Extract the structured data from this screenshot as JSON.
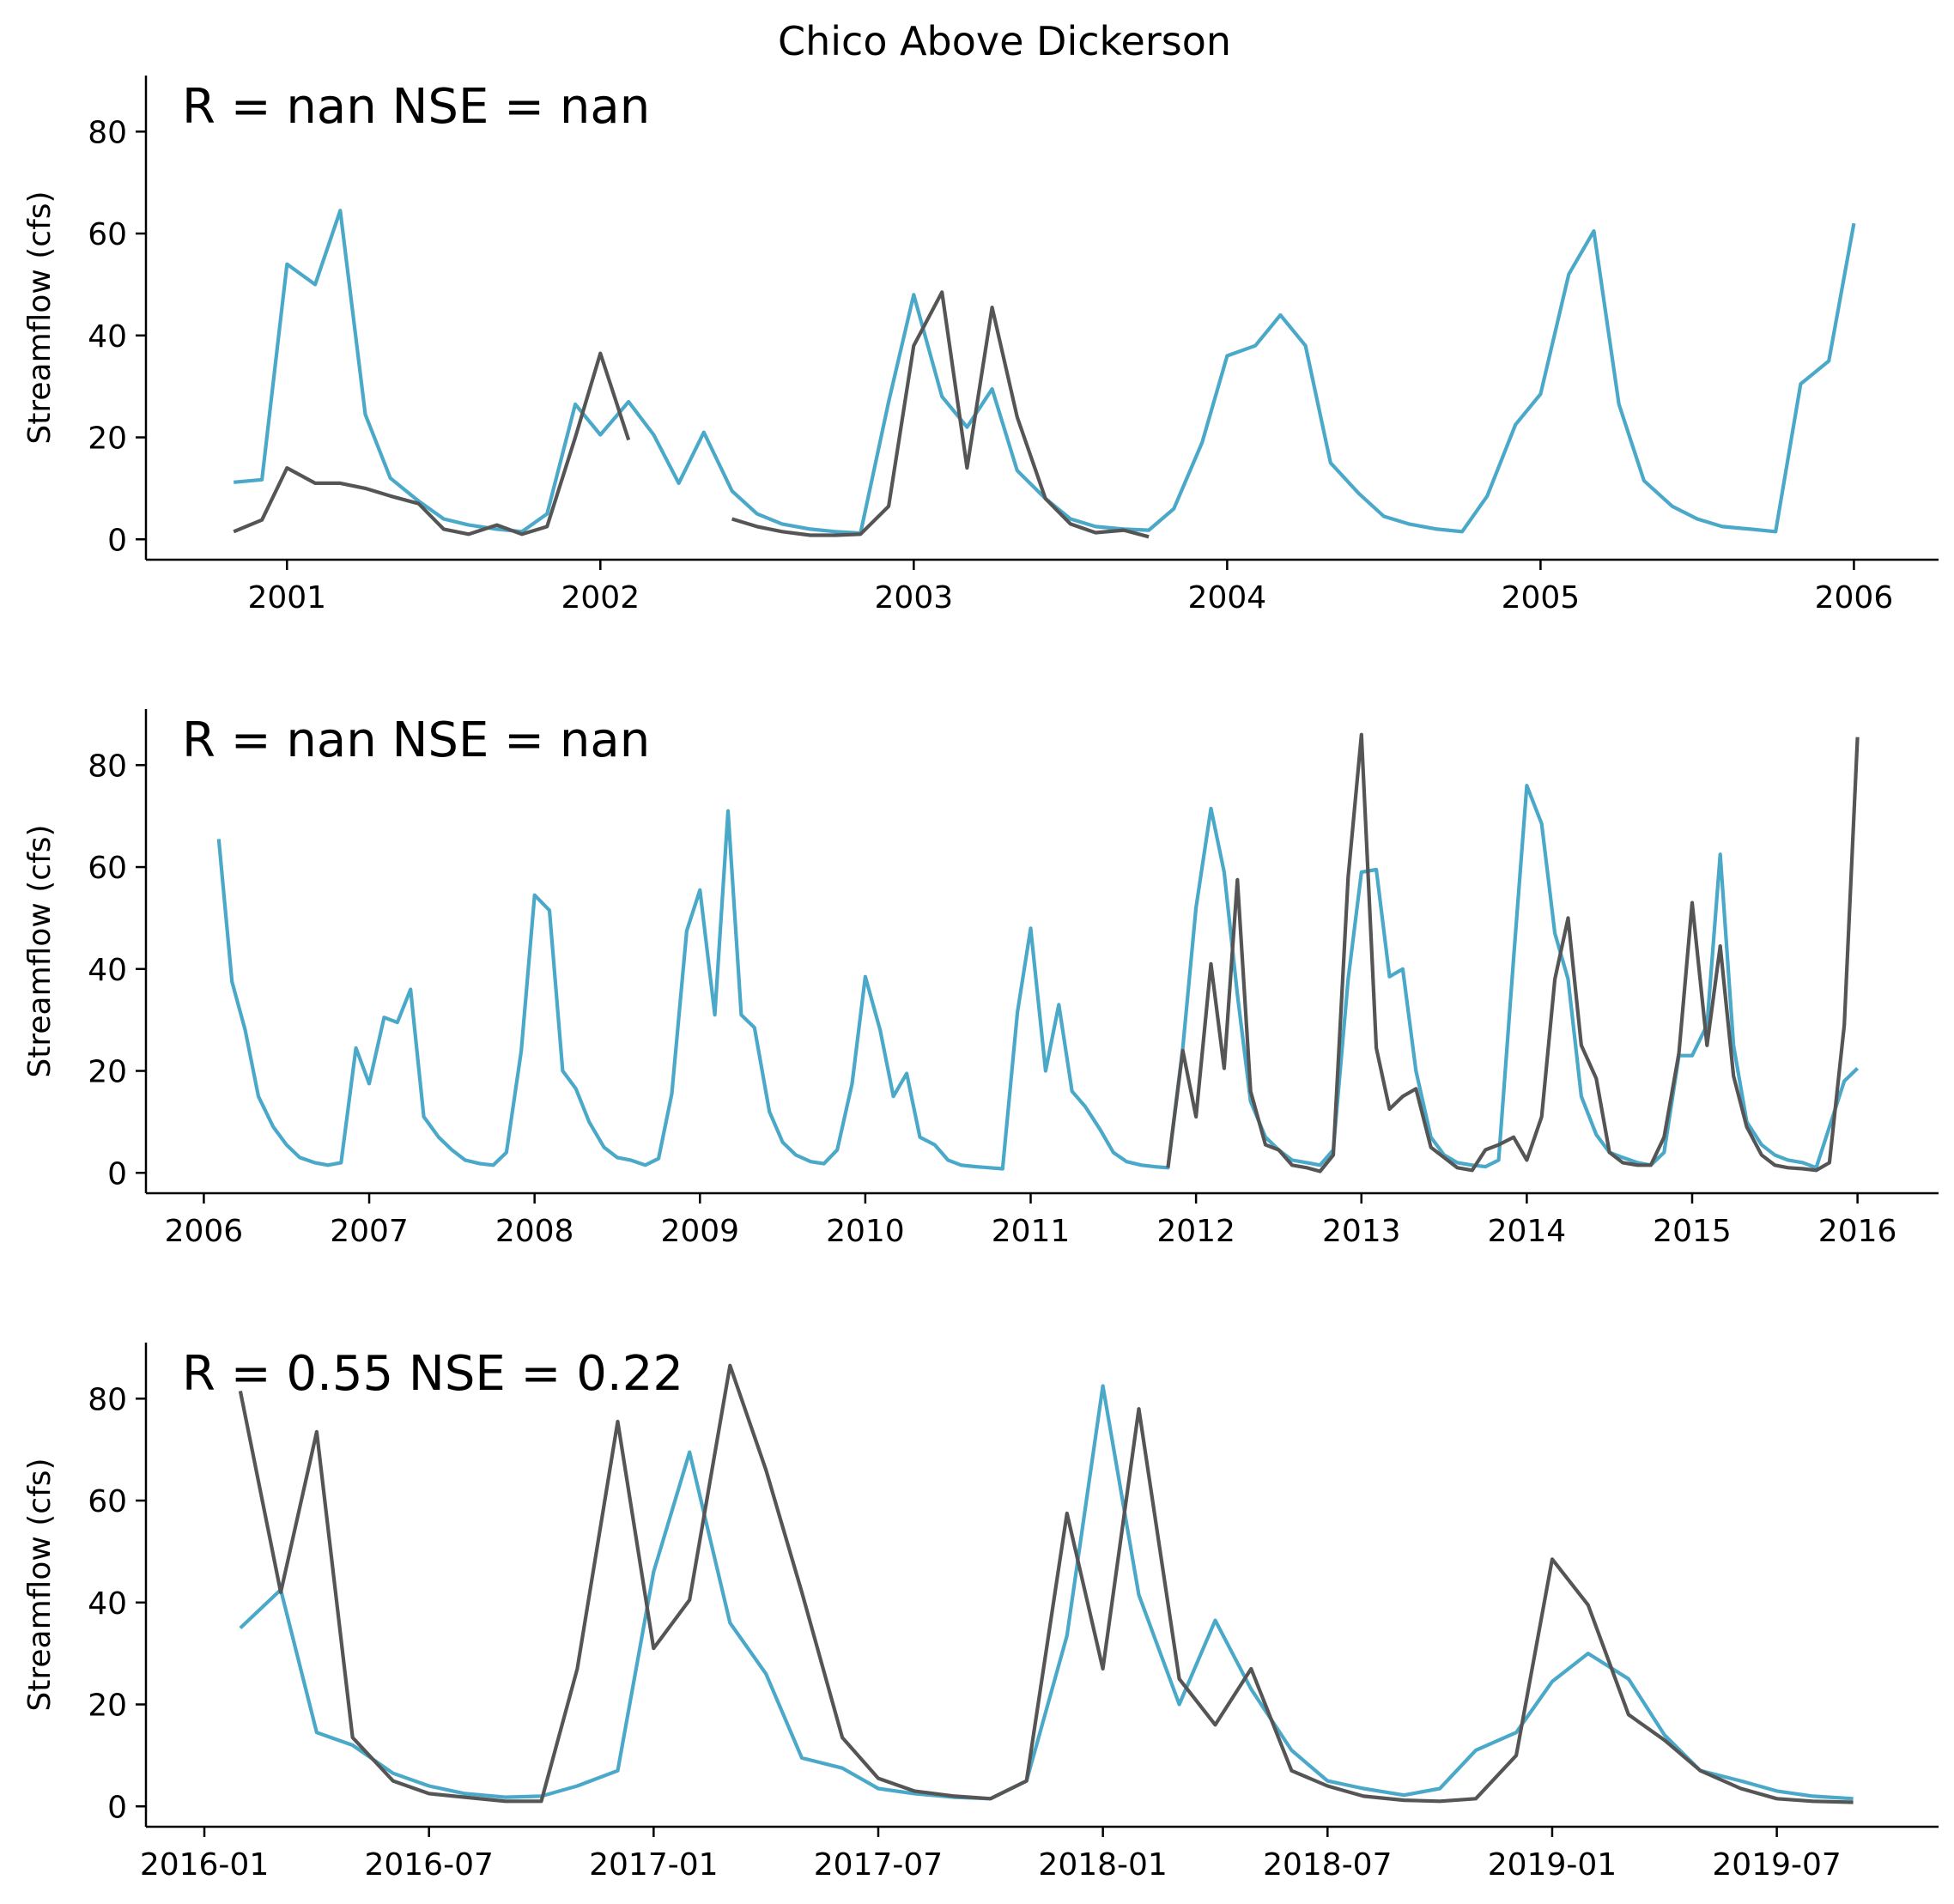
{
  "figure": {
    "title": "Chico Above Dickerson"
  },
  "colors": {
    "observed": "#555555",
    "simulated": "#4aa8c8"
  },
  "chart_data": [
    {
      "type": "line",
      "title": "",
      "annotation": "R = nan  NSE = nan",
      "ylabel": "Streamflow (cfs)",
      "xlabel": "",
      "xlim": [
        2000.55,
        2006.27
      ],
      "ylim": [
        -4,
        91
      ],
      "yticks": [
        0,
        20,
        40,
        60,
        80
      ],
      "xticks": [
        {
          "v": 2001,
          "label": "2001"
        },
        {
          "v": 2002,
          "label": "2002"
        },
        {
          "v": 2003,
          "label": "2003"
        },
        {
          "v": 2004,
          "label": "2004"
        },
        {
          "v": 2005,
          "label": "2005"
        },
        {
          "v": 2006,
          "label": "2006"
        }
      ],
      "series": [
        {
          "key": "simulated",
          "x": [
            2000.83,
            2000.92,
            2001.0,
            2001.09,
            2001.17,
            2001.25,
            2001.33,
            2001.42,
            2001.5,
            2001.58,
            2001.67,
            2001.75,
            2001.83,
            2001.92,
            2002.0,
            2002.09,
            2002.17,
            2002.25,
            2002.33,
            2002.42,
            2002.5,
            2002.58,
            2002.67,
            2002.75,
            2002.83,
            2002.92,
            2003.0,
            2003.09,
            2003.17,
            2003.25,
            2003.33,
            2003.42,
            2003.5,
            2003.58,
            2003.67,
            2003.75,
            2003.83,
            2003.92,
            2004.0,
            2004.09,
            2004.17,
            2004.25,
            2004.33,
            2004.42,
            2004.5,
            2004.58,
            2004.67,
            2004.75,
            2004.83,
            2004.92,
            2005.0,
            2005.09,
            2005.17,
            2005.25,
            2005.33,
            2005.42,
            2005.5,
            2005.58,
            2005.67,
            2005.75,
            2005.83,
            2005.92,
            2006.0
          ],
          "y": [
            11.2,
            11.7,
            54,
            50,
            64.5,
            24.5,
            12,
            7.5,
            4,
            2.8,
            2,
            1.5,
            5,
            26.5,
            20.5,
            27,
            20.5,
            11,
            21,
            9.5,
            5,
            3,
            2,
            1.5,
            1.2,
            27,
            48,
            28,
            22,
            29.5,
            13.5,
            8,
            4,
            2.5,
            2,
            1.8,
            6,
            19,
            36,
            38,
            44,
            38,
            15,
            9,
            4.5,
            3,
            2,
            1.5,
            8.5,
            22.5,
            28.5,
            52,
            60.5,
            26.5,
            11.5,
            6.5,
            4,
            2.5,
            2,
            1.5,
            30.5,
            35,
            62
          ]
        },
        {
          "key": "observed",
          "x": [
            2000.83,
            2000.92,
            2001.0,
            2001.09,
            2001.17,
            2001.25,
            2001.33,
            2001.42,
            2001.5,
            2001.58,
            2001.67,
            2001.75,
            2001.83,
            2001.92,
            2002.0,
            2002.09,
            null,
            2002.42,
            2002.5,
            2002.58,
            2002.67,
            2002.75,
            2002.83,
            2002.92,
            2003.0,
            2003.09,
            2003.17,
            2003.25,
            2003.33,
            2003.42,
            2003.5,
            2003.58,
            2003.67,
            2003.75
          ],
          "y": [
            1.5,
            3.8,
            14,
            11,
            11,
            10,
            8.5,
            7,
            2,
            1,
            2.8,
            1,
            2.5,
            20,
            36.5,
            19.5,
            null,
            4,
            2.5,
            1.5,
            0.8,
            0.8,
            1,
            6.5,
            38,
            48.5,
            14,
            45.5,
            24,
            8,
            3,
            1.3,
            1.8,
            0.5
          ]
        }
      ]
    },
    {
      "type": "line",
      "title": "",
      "annotation": "R = nan  NSE = nan",
      "ylabel": "Streamflow (cfs)",
      "xlabel": "",
      "xlim": [
        2005.65,
        2016.49
      ],
      "ylim": [
        -4,
        91
      ],
      "yticks": [
        0,
        20,
        40,
        60,
        80
      ],
      "xticks": [
        {
          "v": 2006,
          "label": "2006"
        },
        {
          "v": 2007,
          "label": "2007"
        },
        {
          "v": 2008,
          "label": "2008"
        },
        {
          "v": 2009,
          "label": "2009"
        },
        {
          "v": 2010,
          "label": "2010"
        },
        {
          "v": 2011,
          "label": "2011"
        },
        {
          "v": 2012,
          "label": "2012"
        },
        {
          "v": 2013,
          "label": "2013"
        },
        {
          "v": 2014,
          "label": "2014"
        },
        {
          "v": 2015,
          "label": "2015"
        },
        {
          "v": 2016,
          "label": "2016"
        }
      ],
      "series": [
        {
          "key": "simulated",
          "x": [
            2006.09,
            2006.17,
            2006.25,
            2006.33,
            2006.42,
            2006.5,
            2006.58,
            2006.67,
            2006.75,
            2006.83,
            2006.92,
            2007.0,
            2007.09,
            2007.17,
            2007.25,
            2007.33,
            2007.42,
            2007.5,
            2007.58,
            2007.67,
            2007.75,
            2007.83,
            2007.92,
            2008.0,
            2008.09,
            2008.17,
            2008.25,
            2008.33,
            2008.42,
            2008.5,
            2008.58,
            2008.67,
            2008.75,
            2008.83,
            2008.92,
            2009.0,
            2009.09,
            2009.17,
            2009.25,
            2009.33,
            2009.42,
            2009.5,
            2009.58,
            2009.67,
            2009.75,
            2009.83,
            2009.92,
            2010.0,
            2010.09,
            2010.17,
            2010.25,
            2010.33,
            2010.42,
            2010.5,
            2010.58,
            2010.67,
            2010.75,
            2010.83,
            2010.92,
            2011.0,
            2011.09,
            2011.17,
            2011.25,
            2011.33,
            2011.42,
            2011.5,
            2011.58,
            2011.67,
            2011.75,
            2011.83,
            2011.92,
            2012.0,
            2012.09,
            2012.17,
            2012.25,
            2012.33,
            2012.42,
            2012.5,
            2012.58,
            2012.67,
            2012.75,
            2012.83,
            2012.92,
            2013.0,
            2013.09,
            2013.17,
            2013.25,
            2013.33,
            2013.42,
            2013.5,
            2013.58,
            2013.67,
            2013.75,
            2013.83,
            2013.92,
            2014.0,
            2014.09,
            2014.17,
            2014.25,
            2014.33,
            2014.42,
            2014.5,
            2014.58,
            2014.67,
            2014.75,
            2014.83,
            2014.92,
            2015.0,
            2015.09,
            2015.17,
            2015.25,
            2015.33,
            2015.42,
            2015.5,
            2015.58,
            2015.67,
            2015.75,
            2015.83,
            2015.92,
            2016.0
          ],
          "y": [
            65.5,
            37.5,
            28,
            15,
            9,
            5.5,
            3,
            2,
            1.5,
            2,
            24.5,
            17.5,
            30.5,
            29.5,
            36,
            11,
            7,
            4.5,
            2.5,
            1.8,
            1.5,
            4,
            24,
            54.5,
            51.5,
            20,
            16.5,
            10,
            5,
            3,
            2.5,
            1.5,
            2.8,
            15.5,
            47.5,
            55.5,
            31,
            71,
            31,
            28.5,
            12,
            6,
            3.5,
            2.2,
            1.8,
            4.5,
            17.5,
            38.5,
            28,
            15,
            19.5,
            7,
            5.5,
            2.5,
            1.5,
            1.2,
            1,
            0.8,
            31.5,
            48,
            20,
            33,
            16,
            13,
            8.5,
            4,
            2.2,
            1.5,
            1.2,
            1,
            24.5,
            52,
            71.5,
            59,
            35,
            14,
            7,
            4.5,
            2.5,
            2,
            1.5,
            4.5,
            38,
            59,
            59.5,
            38.5,
            40,
            20,
            7,
            3.5,
            2,
            1.5,
            1.2,
            2.5,
            42,
            76,
            68.5,
            47,
            38,
            15,
            7.5,
            4,
            3,
            2,
            1.5,
            4,
            23,
            23,
            29,
            62.5,
            25,
            10,
            5.5,
            3.5,
            2.5,
            2,
            1,
            9,
            18,
            20.5
          ]
        },
        {
          "key": "observed",
          "x": [
            2011.83,
            2011.92,
            2012.0,
            2012.09,
            2012.17,
            2012.25,
            2012.33,
            2012.42,
            2012.5,
            2012.58,
            2012.67,
            2012.75,
            2012.83,
            2012.92,
            2013.0,
            2013.09,
            2013.17,
            2013.25,
            2013.33,
            2013.42,
            2013.5,
            2013.58,
            2013.67,
            2013.75,
            2013.83,
            2013.92,
            2014.0,
            2014.09,
            2014.17,
            2014.25,
            2014.33,
            2014.42,
            2014.5,
            2014.58,
            2014.67,
            2014.75,
            2014.83,
            2014.92,
            2015.0,
            2015.09,
            2015.17,
            2015.25,
            2015.33,
            2015.42,
            2015.5,
            2015.58,
            2015.67,
            2015.75,
            2015.83,
            2015.92,
            2016.0
          ],
          "y": [
            1,
            24,
            11,
            41,
            20.5,
            57.5,
            16,
            5.5,
            4.5,
            1.5,
            1,
            0.3,
            3.5,
            58,
            86,
            24.5,
            12.5,
            15,
            16.5,
            5,
            3,
            1,
            0.5,
            4.5,
            5.5,
            7,
            2.5,
            11,
            38,
            50,
            25,
            18.5,
            4,
            2,
            1.5,
            1.5,
            7,
            23.5,
            53,
            25,
            44.5,
            19,
            9,
            3.5,
            1.5,
            1,
            0.8,
            0.5,
            2,
            29,
            85.5
          ]
        }
      ]
    },
    {
      "type": "line",
      "title": "",
      "annotation": "R = 0.55  NSE = 0.22",
      "ylabel": "Streamflow (cfs)",
      "xlabel": "",
      "xlim": [
        2015.87,
        2019.86
      ],
      "ylim": [
        -4,
        91
      ],
      "yticks": [
        0,
        20,
        40,
        60,
        80
      ],
      "xticks": [
        {
          "v": 2016.0,
          "label": "2016-01"
        },
        {
          "v": 2016.5,
          "label": "2016-07"
        },
        {
          "v": 2017.0,
          "label": "2017-01"
        },
        {
          "v": 2017.5,
          "label": "2017-07"
        },
        {
          "v": 2018.0,
          "label": "2018-01"
        },
        {
          "v": 2018.5,
          "label": "2018-07"
        },
        {
          "v": 2019.0,
          "label": "2019-01"
        },
        {
          "v": 2019.5,
          "label": "2019-07"
        }
      ],
      "series": [
        {
          "key": "simulated",
          "x": [
            2016.08,
            2016.17,
            2016.25,
            2016.33,
            2016.42,
            2016.5,
            2016.58,
            2016.67,
            2016.75,
            2016.83,
            2016.92,
            2017.0,
            2017.08,
            2017.17,
            2017.25,
            2017.33,
            2017.42,
            2017.5,
            2017.58,
            2017.67,
            2017.75,
            2017.83,
            2017.92,
            2018.0,
            2018.08,
            2018.17,
            2018.25,
            2018.33,
            2018.42,
            2018.5,
            2018.58,
            2018.67,
            2018.75,
            2018.83,
            2018.92,
            2019.0,
            2019.08,
            2019.17,
            2019.25,
            2019.33,
            2019.42,
            2019.5,
            2019.58,
            2019.67
          ],
          "y": [
            35,
            42.5,
            14.5,
            12,
            6.5,
            4,
            2.5,
            1.8,
            2,
            4,
            7,
            46,
            69.5,
            36,
            26,
            9.5,
            7.5,
            3.5,
            2.5,
            1.8,
            1.5,
            5,
            33.5,
            82.5,
            41.5,
            20,
            36.5,
            23,
            11,
            5,
            3.5,
            2.2,
            3.5,
            11,
            14.5,
            24.5,
            30,
            25,
            14,
            7,
            5,
            3,
            2,
            1.5
          ]
        },
        {
          "key": "observed",
          "x": [
            2016.08,
            2016.17,
            2016.25,
            2016.33,
            2016.42,
            2016.5,
            2016.58,
            2016.67,
            2016.75,
            2016.83,
            2016.92,
            2017.0,
            2017.08,
            2017.17,
            2017.25,
            2017.33,
            2017.42,
            2017.5,
            2017.58,
            2017.67,
            2017.75,
            2017.83,
            2017.92,
            2018.0,
            2018.08,
            2018.17,
            2018.25,
            2018.33,
            2018.42,
            2018.5,
            2018.58,
            2018.67,
            2018.75,
            2018.83,
            2018.92,
            2019.0,
            2019.08,
            2019.17,
            2019.25,
            2019.33,
            2019.42,
            2019.5,
            2019.58,
            2019.67
          ],
          "y": [
            81.5,
            42,
            73.5,
            13.5,
            5,
            2.5,
            1.8,
            1,
            1,
            27,
            75.5,
            31,
            40.5,
            86.5,
            66,
            42,
            13.5,
            5.5,
            3,
            2,
            1.5,
            5,
            57.5,
            27,
            78,
            25,
            16,
            27,
            7,
            4,
            2,
            1.2,
            1,
            1.5,
            10,
            48.5,
            39.5,
            18,
            13,
            7,
            3.5,
            1.5,
            1,
            0.8
          ]
        }
      ]
    }
  ]
}
